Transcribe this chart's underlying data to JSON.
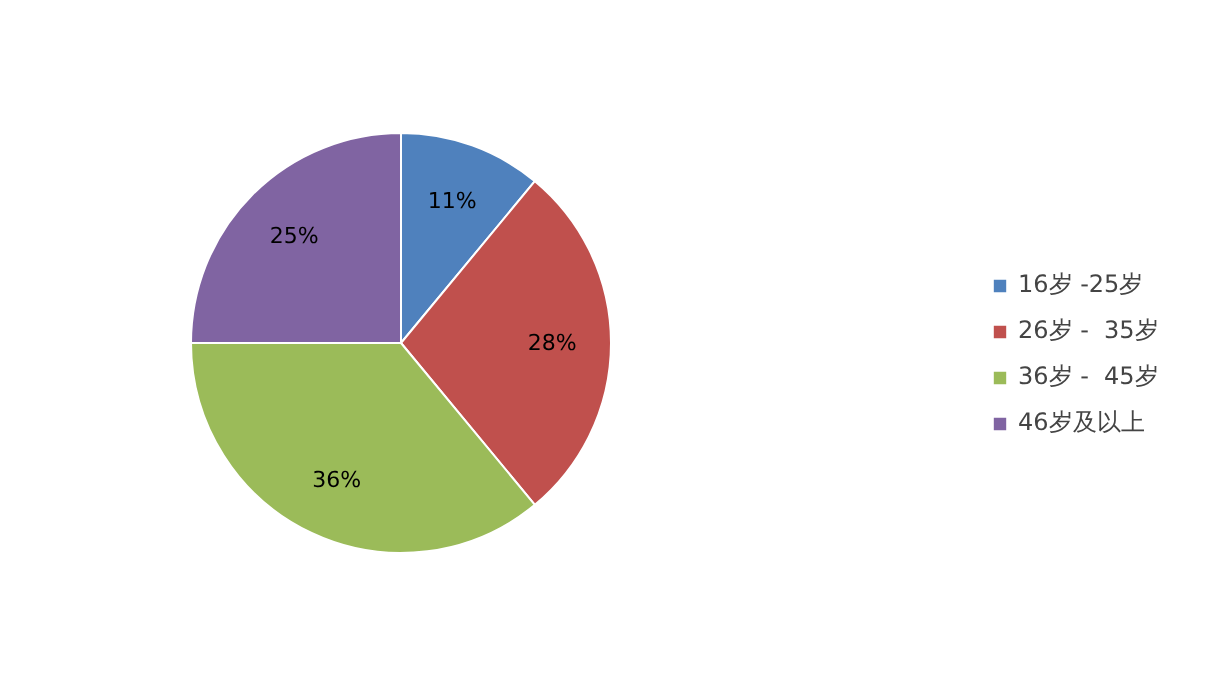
{
  "chart_data": {
    "type": "pie",
    "categories": [
      "16岁 -25岁",
      "26岁 -  35岁",
      "36岁 -  45岁",
      "46岁及以上"
    ],
    "values": [
      11,
      28,
      36,
      25
    ],
    "colors": [
      "#4f81bd",
      "#c0504d",
      "#9bbb59",
      "#8064a2"
    ],
    "value_labels": [
      "11%",
      "28%",
      "36%",
      "25%"
    ],
    "legend": "right"
  }
}
